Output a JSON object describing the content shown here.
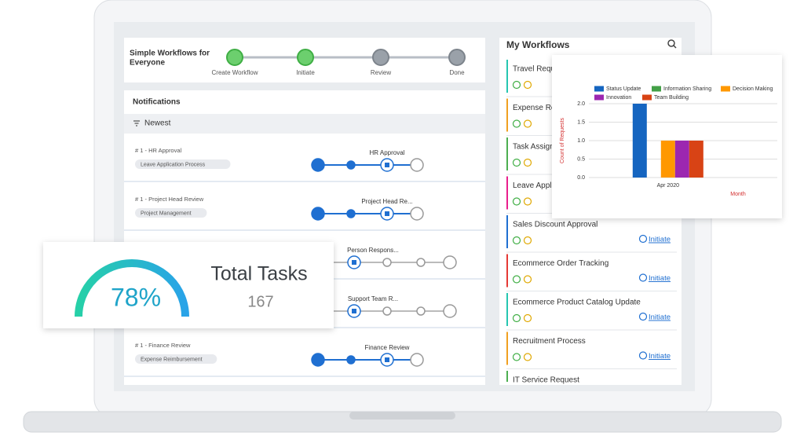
{
  "header": {
    "title_lines": [
      "Simple Workflows for",
      "Everyone"
    ],
    "steps": [
      "Create Workflow",
      "Initiate",
      "Review",
      "Done"
    ]
  },
  "notifications": {
    "title": "Notifications",
    "filter": "Newest",
    "items": [
      {
        "title": "# 1 - HR Approval",
        "tag": "Leave Application Process",
        "stage": "HR Approval"
      },
      {
        "title": "# 1 - Project Head Review",
        "tag": "Project Management",
        "stage": "Project Head Re..."
      },
      {
        "stage": "Person Respons..."
      },
      {
        "stage": "Support Team R..."
      },
      {
        "title": "# 1 - Finance Review",
        "tag": "Expense Reimbursement",
        "stage": "Finance Review"
      }
    ]
  },
  "tasks": {
    "percent": "78%",
    "label": "Total Tasks",
    "count": "167"
  },
  "workflows": {
    "title": "My Workflows",
    "action": "Initiate",
    "items": [
      "Travel Requ",
      "Expense Re",
      "Task Assign",
      "Leave Appli",
      "Sales Discount Approval",
      "Ecommerce Order Tracking",
      "Ecommerce Product Catalog Update",
      "Recruitment Process",
      "IT Service Request"
    ]
  },
  "chart_data": {
    "type": "bar",
    "categories": [
      "Apr 2020"
    ],
    "xlabel": "Month",
    "ylabel": "Count of Requests",
    "series": [
      {
        "name": "Status Update",
        "color": "#1565c0",
        "values": [
          2
        ]
      },
      {
        "name": "Information Sharing",
        "color": "#43a047",
        "values": [
          0
        ]
      },
      {
        "name": "Decision Making",
        "color": "#ff9800",
        "values": [
          1
        ]
      },
      {
        "name": "Innovation",
        "color": "#9c27b0",
        "values": [
          1
        ]
      },
      {
        "name": "Team Building",
        "color": "#d84315",
        "values": [
          1
        ]
      }
    ],
    "ylim": [
      0,
      2
    ],
    "yticks": [
      {
        "value": 0,
        "label": "0.0"
      },
      {
        "value": 0.5,
        "label": "0.5"
      },
      {
        "value": 1,
        "label": "1.0"
      },
      {
        "value": 1.5,
        "label": "1.5"
      },
      {
        "value": 2,
        "label": "2.0"
      }
    ],
    "grid": true
  }
}
